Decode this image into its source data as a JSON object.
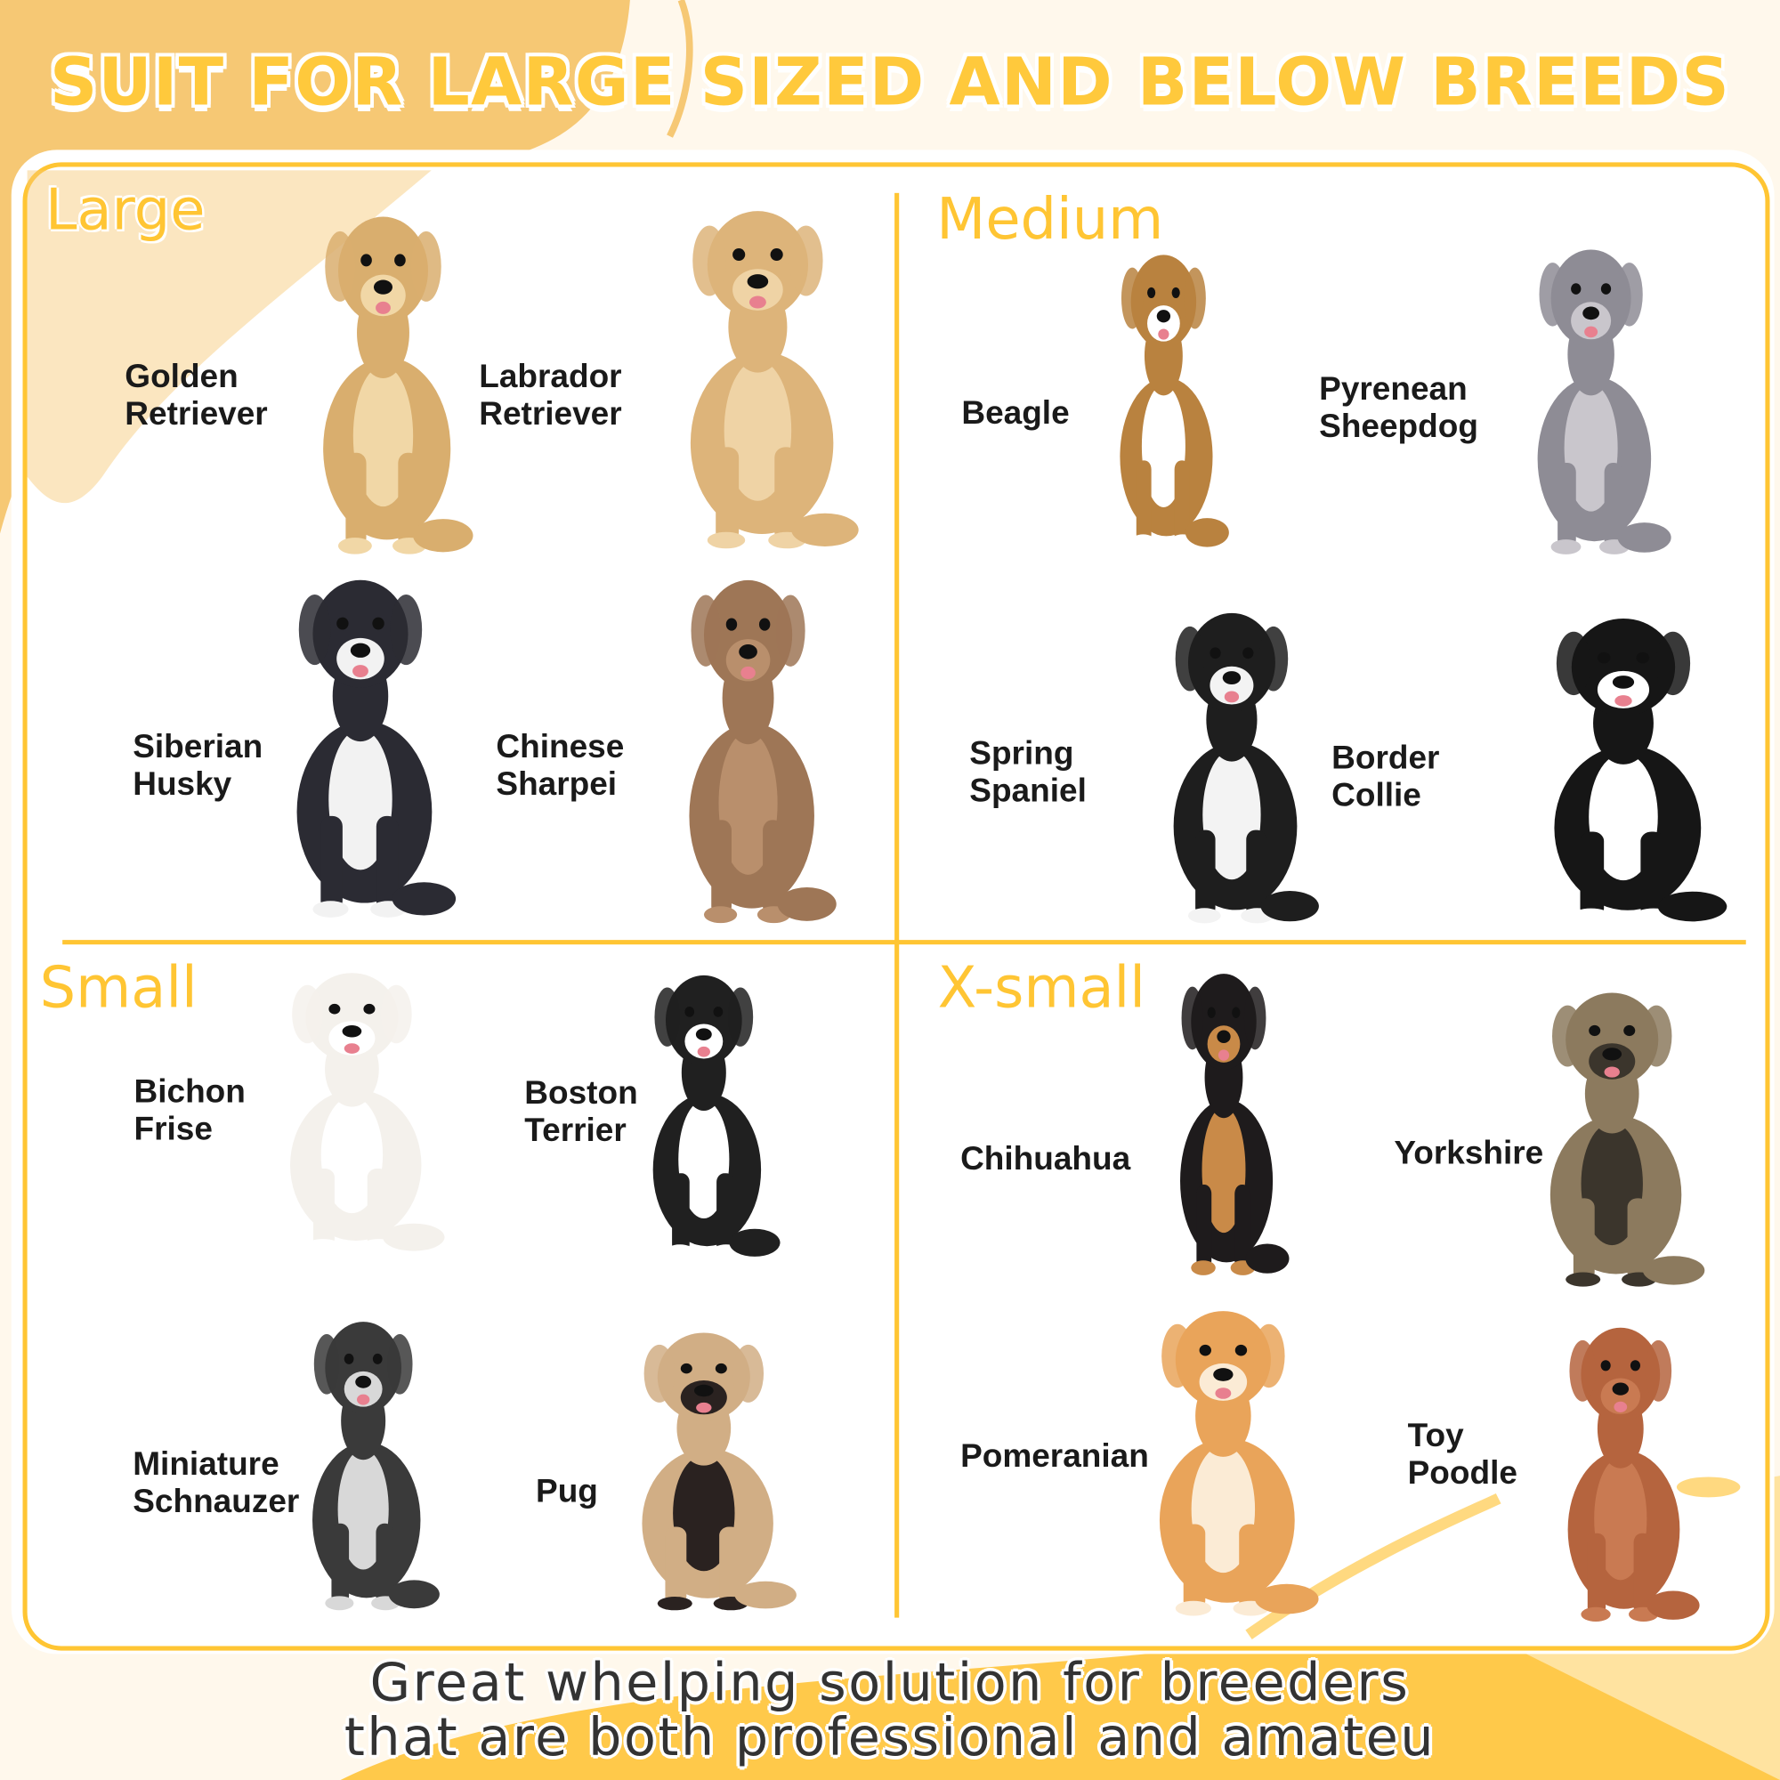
{
  "title": "SUIT FOR LARGE SIZED AND BELOW BREEDS",
  "colors": {
    "accent": "#FFC533",
    "background": "#FFF8EC",
    "blob_top": "#F6C874",
    "blob_bottom": "#FFC94A",
    "text": "#1a1a1a"
  },
  "sections": [
    {
      "name": "Large",
      "breeds": [
        {
          "label": "Golden\nRetriever",
          "coat": "#D9AE6E",
          "accent": "#F1D7A6"
        },
        {
          "label": "Labrador\nRetriever",
          "coat": "#DDB47A",
          "accent": "#EFD3A5"
        },
        {
          "label": "Siberian\nHusky",
          "coat": "#2B2B33",
          "accent": "#F2F2F2"
        },
        {
          "label": "Chinese\nSharpei",
          "coat": "#9E7656",
          "accent": "#B98F6C"
        }
      ]
    },
    {
      "name": "Medium",
      "breeds": [
        {
          "label": "Beagle",
          "coat": "#B9823F",
          "accent": "#FFFFFF"
        },
        {
          "label": "Pyrenean\nSheepdog",
          "coat": "#8E8C95",
          "accent": "#C9C6CC"
        },
        {
          "label": "Spring\nSpaniel",
          "coat": "#1E1E1E",
          "accent": "#F3F3F3"
        },
        {
          "label": "Border\nCollie",
          "coat": "#161616",
          "accent": "#FFFFFF"
        }
      ]
    },
    {
      "name": "Small",
      "breeds": [
        {
          "label": "Bichon\nFrise",
          "coat": "#F4F1EC",
          "accent": "#FFFFFF"
        },
        {
          "label": "Boston\nTerrier",
          "coat": "#202020",
          "accent": "#FFFFFF"
        },
        {
          "label": "Miniature\nSchnauzer",
          "coat": "#3A3A3A",
          "accent": "#D8D8D8"
        },
        {
          "label": "Pug",
          "coat": "#D1AE85",
          "accent": "#2A2220"
        }
      ]
    },
    {
      "name": "X-small",
      "breeds": [
        {
          "label": "Chihuahua",
          "coat": "#1E1B1C",
          "accent": "#C98A48"
        },
        {
          "label": "Yorkshire",
          "coat": "#8C7A5E",
          "accent": "#3B352C"
        },
        {
          "label": "Pomeranian",
          "coat": "#E9A45A",
          "accent": "#FBEBD5"
        },
        {
          "label": "Toy\nPoodle",
          "coat": "#B5643E",
          "accent": "#C97A52"
        }
      ]
    }
  ],
  "footer": {
    "line1": "Great whelping solution for breeders",
    "line2": "that are both professional and amateu"
  }
}
